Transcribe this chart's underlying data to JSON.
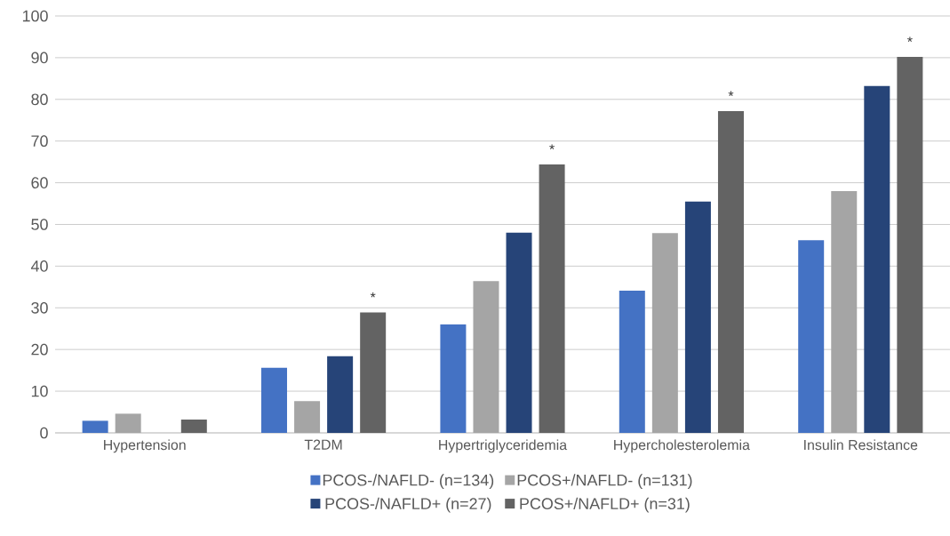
{
  "chart_data": {
    "type": "bar",
    "categories": [
      "Hypertension",
      "T2DM",
      "Hypertriglyceridemia",
      "Hypercholesterolemia",
      "Insulin Resistance"
    ],
    "series": [
      {
        "name": "PCOS-/NAFLD- (n=134)",
        "color": "#4472c4",
        "values": [
          2.9,
          15.6,
          26.0,
          34.1,
          46.2
        ]
      },
      {
        "name": "PCOS+/NAFLD- (n=131)",
        "color": "#a5a5a5",
        "values": [
          4.6,
          7.6,
          36.4,
          47.9,
          58.0
        ]
      },
      {
        "name": "PCOS-/NAFLD+ (n=27)",
        "color": "#264478",
        "values": [
          0,
          18.4,
          48.0,
          55.5,
          83.2
        ]
      },
      {
        "name": "PCOS+/NAFLD+ (n=31)",
        "color": "#636363",
        "values": [
          3.2,
          28.9,
          64.4,
          77.2,
          90.2
        ]
      }
    ],
    "annotations": [
      "*",
      "*",
      "*",
      "*"
    ],
    "ylim": [
      0,
      100
    ],
    "yticks": [
      0,
      10,
      20,
      30,
      40,
      50,
      60,
      70,
      80,
      90,
      100
    ],
    "grid": "y",
    "legend": "bottom"
  }
}
